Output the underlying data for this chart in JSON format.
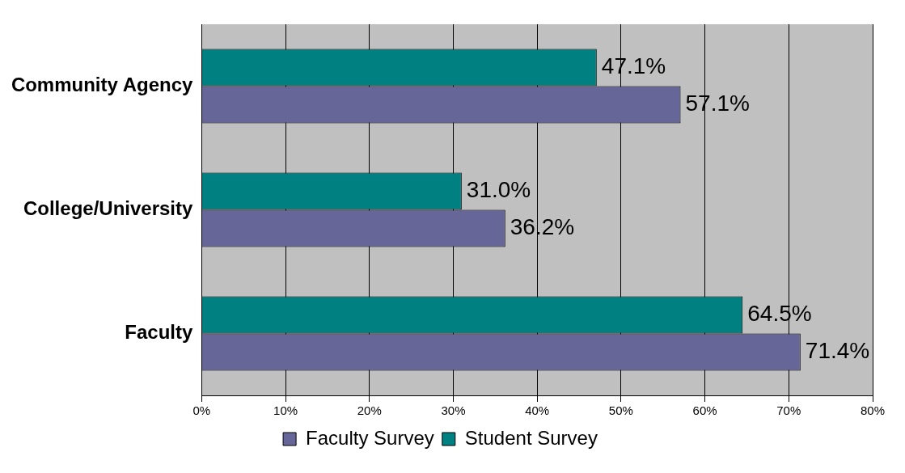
{
  "chart_data": {
    "type": "bar",
    "orientation": "horizontal",
    "categories": [
      "Community Agency",
      "College/University",
      "Faculty"
    ],
    "series": [
      {
        "name": "Faculty Survey",
        "color": "#666699",
        "values": [
          57.1,
          36.2,
          71.4
        ],
        "value_labels": [
          "57.1%",
          "36.2%",
          "71.4%"
        ]
      },
      {
        "name": "Student Survey",
        "color": "#008080",
        "values": [
          47.1,
          31.0,
          64.5
        ],
        "value_labels": [
          "47.1%",
          "31.0%",
          "64.5%"
        ]
      }
    ],
    "xlim": [
      0,
      80
    ],
    "xticks": [
      {
        "value": 0,
        "label": "0%"
      },
      {
        "value": 10,
        "label": "10%"
      },
      {
        "value": 20,
        "label": "20%"
      },
      {
        "value": 30,
        "label": "30%"
      },
      {
        "value": 40,
        "label": "40%"
      },
      {
        "value": 50,
        "label": "50%"
      },
      {
        "value": 60,
        "label": "60%"
      },
      {
        "value": 70,
        "label": "70%"
      },
      {
        "value": 80,
        "label": "80%"
      }
    ],
    "grid": "x",
    "legend": "bottom"
  }
}
